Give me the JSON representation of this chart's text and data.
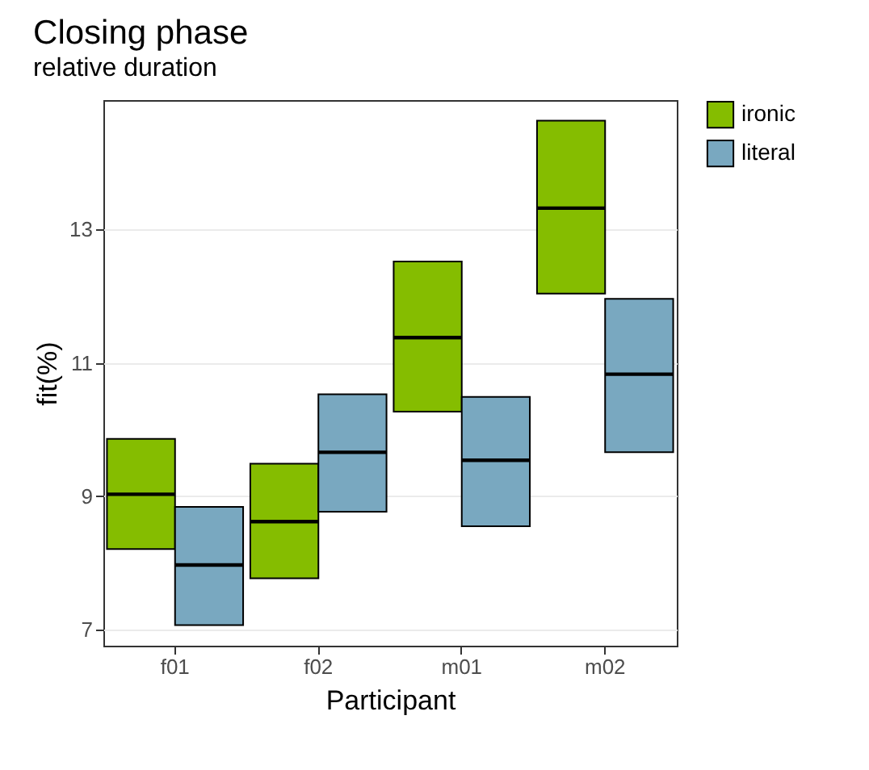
{
  "chart_data": {
    "type": "box",
    "title": "Closing phase",
    "subtitle": "relative duration",
    "xlabel": "Participant",
    "ylabel": "fit(%)",
    "categories": [
      "f01",
      "f02",
      "m01",
      "m02"
    ],
    "series": [
      {
        "name": "ironic",
        "color": "#85bd00",
        "boxes": [
          {
            "low": 8.21,
            "q1": 8.21,
            "median": 9.03,
            "q3": 9.86,
            "high": 9.86
          },
          {
            "low": 7.77,
            "q1": 7.77,
            "median": 8.62,
            "q3": 9.49,
            "high": 9.49
          },
          {
            "low": 10.27,
            "q1": 10.27,
            "median": 11.38,
            "q3": 12.52,
            "high": 12.52
          },
          {
            "low": 12.04,
            "q1": 12.04,
            "median": 13.32,
            "q3": 14.63,
            "high": 14.63
          }
        ]
      },
      {
        "name": "literal",
        "color": "#79a8c0",
        "boxes": [
          {
            "low": 7.07,
            "q1": 7.07,
            "median": 7.97,
            "q3": 8.84,
            "high": 8.84
          },
          {
            "low": 8.77,
            "q1": 8.77,
            "median": 9.66,
            "q3": 10.53,
            "high": 10.53
          },
          {
            "low": 8.55,
            "q1": 8.55,
            "median": 9.54,
            "q3": 10.49,
            "high": 10.49
          },
          {
            "low": 9.66,
            "q1": 9.66,
            "median": 10.83,
            "q3": 11.96,
            "high": 11.96
          }
        ]
      }
    ],
    "ylim": [
      6.76,
      14.94
    ],
    "yticks": [
      7,
      9,
      11,
      13
    ],
    "grid": true,
    "legend": "right"
  }
}
